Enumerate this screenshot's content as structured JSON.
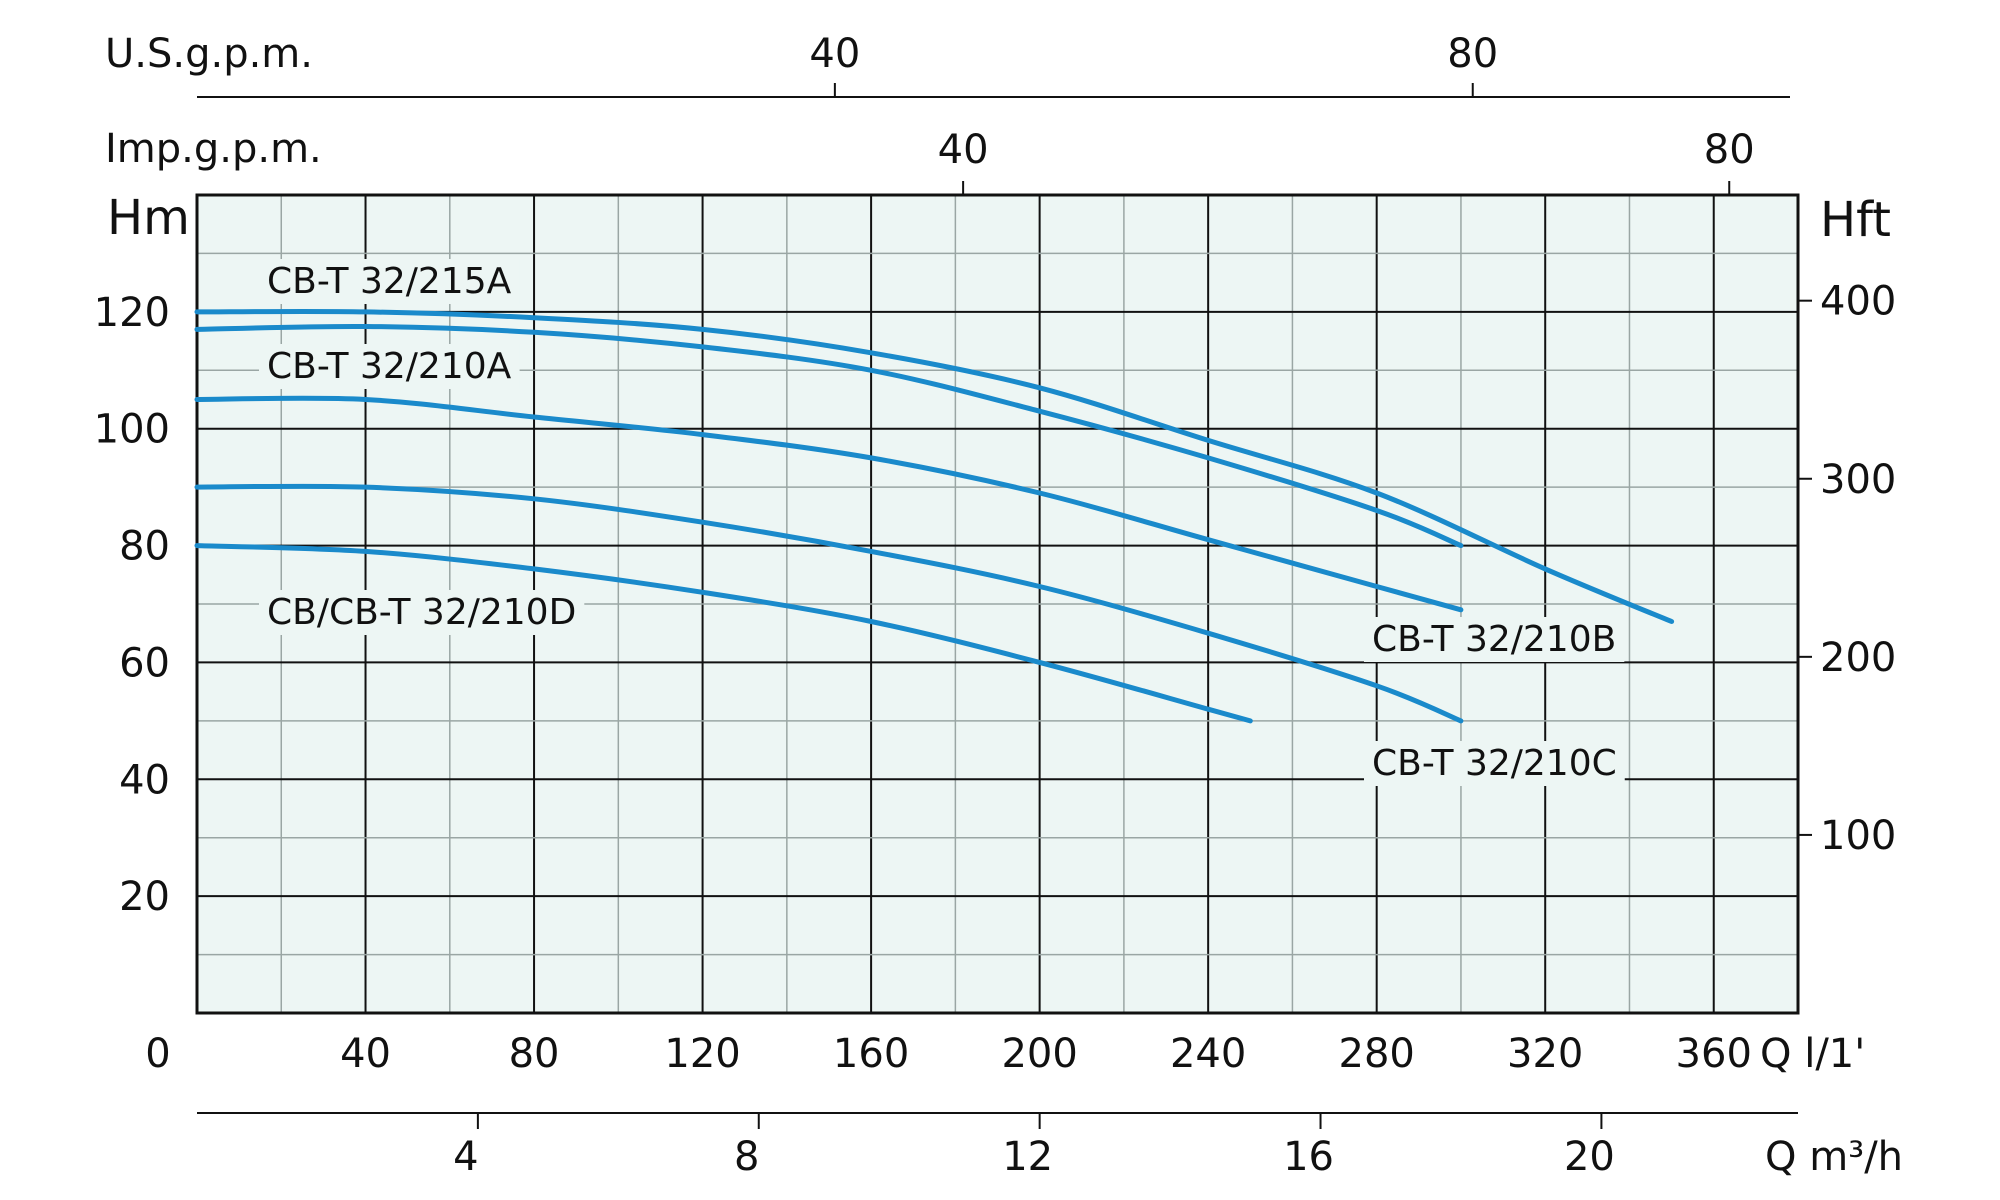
{
  "colors": {
    "curve": "#1a8acb",
    "plot_bg": "#edf6f4",
    "grid_major": "#111111",
    "grid_minor": "#9aa6a4",
    "axis": "#111111"
  },
  "chart_data": {
    "type": "line",
    "xlabel": "Q l/1'",
    "ylabel": "Hm",
    "xlim": [
      0,
      380
    ],
    "ylim": [
      0,
      140
    ],
    "x_ticks": [
      {
        "value": 0,
        "label": "0"
      },
      {
        "value": 40,
        "label": "40"
      },
      {
        "value": 80,
        "label": "80"
      },
      {
        "value": 120,
        "label": "120"
      },
      {
        "value": 160,
        "label": "160"
      },
      {
        "value": 200,
        "label": "200"
      },
      {
        "value": 240,
        "label": "240"
      },
      {
        "value": 280,
        "label": "280"
      },
      {
        "value": 320,
        "label": "320"
      },
      {
        "value": 360,
        "label": "360"
      }
    ],
    "y_ticks": [
      {
        "value": 20,
        "label": "20"
      },
      {
        "value": 40,
        "label": "40"
      },
      {
        "value": 60,
        "label": "60"
      },
      {
        "value": 80,
        "label": "80"
      },
      {
        "value": 100,
        "label": "100"
      },
      {
        "value": 120,
        "label": "120"
      }
    ],
    "grid": true,
    "secondary_axes": {
      "right": {
        "label": "Hft",
        "factor": 3.281,
        "ticks": [
          {
            "value": 100,
            "label": "100"
          },
          {
            "value": 200,
            "label": "200"
          },
          {
            "value": 300,
            "label": "300"
          },
          {
            "value": 400,
            "label": "400"
          }
        ]
      },
      "bottom_m3h": {
        "label": "Q m³/h",
        "factor": 16.667,
        "ticks": [
          {
            "value": 4,
            "label": "4"
          },
          {
            "value": 8,
            "label": "8"
          },
          {
            "value": 12,
            "label": "12"
          },
          {
            "value": 16,
            "label": "16"
          },
          {
            "value": 20,
            "label": "20"
          }
        ]
      },
      "top_us_gpm": {
        "label": "U.S.g.p.m.",
        "factor": 3.785,
        "ticks": [
          {
            "value": 40,
            "label": "40"
          },
          {
            "value": 80,
            "label": "80"
          }
        ]
      },
      "top_imp_gpm": {
        "label": "Imp.g.p.m.",
        "factor": 4.546,
        "ticks": [
          {
            "value": 40,
            "label": "40"
          },
          {
            "value": 80,
            "label": "80"
          }
        ]
      }
    },
    "series": [
      {
        "name": "CB-T 32/215A",
        "points": [
          [
            0,
            120
          ],
          [
            40,
            120
          ],
          [
            80,
            119
          ],
          [
            120,
            117
          ],
          [
            160,
            113
          ],
          [
            200,
            107
          ],
          [
            240,
            98
          ],
          [
            280,
            89
          ],
          [
            320,
            76
          ],
          [
            350,
            67
          ]
        ]
      },
      {
        "name": "CB-T 32/210A",
        "points": [
          [
            0,
            117
          ],
          [
            40,
            117.5
          ],
          [
            80,
            116.5
          ],
          [
            120,
            114
          ],
          [
            160,
            110
          ],
          [
            200,
            103
          ],
          [
            240,
            95
          ],
          [
            280,
            86
          ],
          [
            300,
            80
          ]
        ]
      },
      {
        "name": "CB-T 32/210B",
        "points": [
          [
            0,
            105
          ],
          [
            40,
            105
          ],
          [
            80,
            102
          ],
          [
            120,
            99
          ],
          [
            160,
            95
          ],
          [
            200,
            89
          ],
          [
            240,
            81
          ],
          [
            280,
            73
          ],
          [
            300,
            69
          ]
        ]
      },
      {
        "name": "CB-T 32/210C",
        "points": [
          [
            0,
            90
          ],
          [
            40,
            90
          ],
          [
            80,
            88
          ],
          [
            120,
            84
          ],
          [
            160,
            79
          ],
          [
            200,
            73
          ],
          [
            240,
            65
          ],
          [
            280,
            56
          ],
          [
            300,
            50
          ]
        ]
      },
      {
        "name": "CB/CB-T 32/210D",
        "points": [
          [
            0,
            80
          ],
          [
            40,
            79
          ],
          [
            80,
            76
          ],
          [
            120,
            72
          ],
          [
            160,
            67
          ],
          [
            200,
            60
          ],
          [
            240,
            52
          ],
          [
            250,
            50
          ]
        ]
      }
    ]
  }
}
